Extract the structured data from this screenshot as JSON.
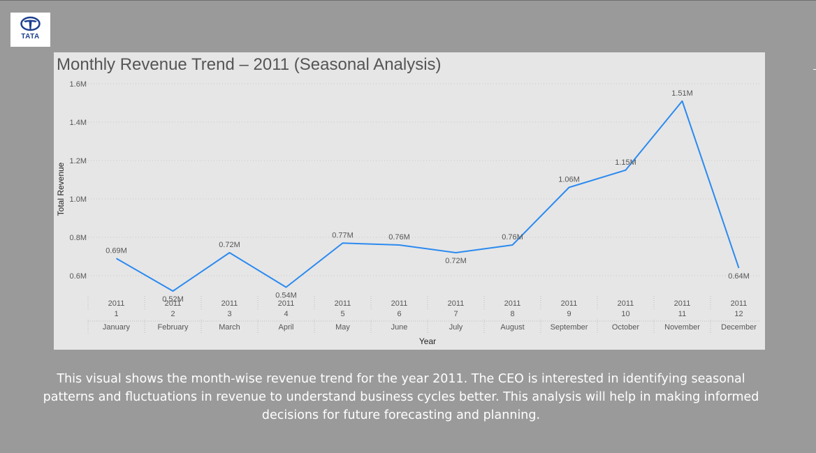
{
  "logo": {
    "text": "TATA"
  },
  "chart_title": "Monthly Revenue Trend – 2011 (Seasonal Analysis)",
  "caption": "This visual shows the month-wise revenue trend for the year 2011. The CEO is interested in identifying seasonal patterns and fluctuations in revenue to understand business cycles better. This analysis will help in making informed decisions for future forecasting and planning.",
  "colors": {
    "line": "#2b8af0",
    "panel": "#e6e6e6",
    "background": "#9a9a9a"
  },
  "chart_data": {
    "type": "line",
    "title": "Monthly Revenue Trend – 2011 (Seasonal Analysis)",
    "xlabel": "Year",
    "ylabel": "Total Revenue",
    "ylim": [
      0.5,
      1.6
    ],
    "y_ticks": [
      {
        "value": 0.6,
        "label": "0.6M"
      },
      {
        "value": 0.8,
        "label": "0.8M"
      },
      {
        "value": 1.0,
        "label": "1.0M"
      },
      {
        "value": 1.2,
        "label": "1.2M"
      },
      {
        "value": 1.4,
        "label": "1.4M"
      },
      {
        "value": 1.6,
        "label": "1.6M"
      }
    ],
    "grid": true,
    "categories": [
      {
        "year": "2011",
        "month_num": "1",
        "month": "January"
      },
      {
        "year": "2011",
        "month_num": "2",
        "month": "February"
      },
      {
        "year": "2011",
        "month_num": "3",
        "month": "March"
      },
      {
        "year": "2011",
        "month_num": "4",
        "month": "April"
      },
      {
        "year": "2011",
        "month_num": "5",
        "month": "May"
      },
      {
        "year": "2011",
        "month_num": "6",
        "month": "June"
      },
      {
        "year": "2011",
        "month_num": "7",
        "month": "July"
      },
      {
        "year": "2011",
        "month_num": "8",
        "month": "August"
      },
      {
        "year": "2011",
        "month_num": "9",
        "month": "September"
      },
      {
        "year": "2011",
        "month_num": "10",
        "month": "October"
      },
      {
        "year": "2011",
        "month_num": "11",
        "month": "November"
      },
      {
        "year": "2011",
        "month_num": "12",
        "month": "December"
      }
    ],
    "values": [
      0.69,
      0.52,
      0.72,
      0.54,
      0.77,
      0.76,
      0.72,
      0.76,
      1.06,
      1.15,
      1.51,
      0.64
    ],
    "data_labels": [
      "0.69M",
      "0.52M",
      "0.72M",
      "0.54M",
      "0.77M",
      "0.76M",
      "0.72M",
      "0.76M",
      "1.06M",
      "1.15M",
      "1.51M",
      "0.64M"
    ],
    "label_positions": [
      "above",
      "below",
      "above",
      "below",
      "above",
      "above",
      "below",
      "above",
      "above",
      "above",
      "above",
      "below"
    ]
  }
}
